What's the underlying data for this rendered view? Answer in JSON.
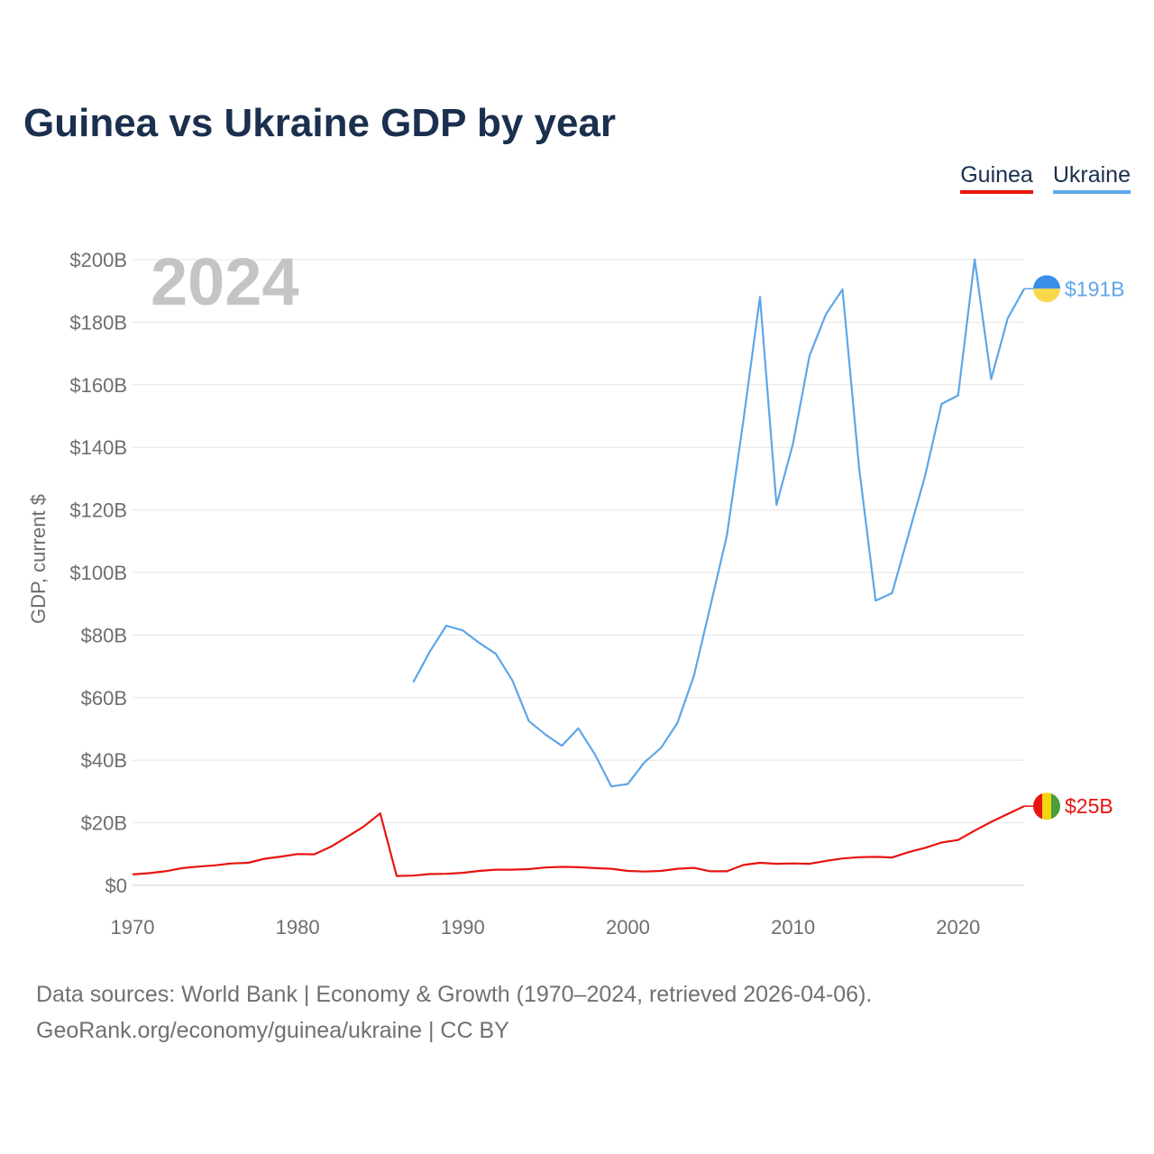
{
  "chart_data": {
    "type": "line",
    "title": "Guinea vs Ukraine GDP by year",
    "year_label": "2024",
    "ylabel": "GDP, current $",
    "xlabel": "",
    "xlim": [
      1970,
      2024
    ],
    "ylim": [
      0,
      200
    ],
    "x_ticks": [
      1970,
      1980,
      1990,
      2000,
      2010,
      2020
    ],
    "y_ticks": [
      {
        "value": 0,
        "label": "$0"
      },
      {
        "value": 20,
        "label": "$20B"
      },
      {
        "value": 40,
        "label": "$40B"
      },
      {
        "value": 60,
        "label": "$60B"
      },
      {
        "value": 80,
        "label": "$80B"
      },
      {
        "value": 100,
        "label": "$100B"
      },
      {
        "value": 120,
        "label": "$120B"
      },
      {
        "value": 140,
        "label": "$140B"
      },
      {
        "value": 160,
        "label": "$160B"
      },
      {
        "value": 180,
        "label": "$180B"
      },
      {
        "value": 200,
        "label": "$200B"
      }
    ],
    "unit": "billion USD",
    "series": [
      {
        "name": "Guinea",
        "color": "#e8140f",
        "end_label": "$25B",
        "flag_colors": [
          "#e8140f",
          "#f5d410",
          "#4a9e3c"
        ],
        "x": [
          1970,
          1971,
          1972,
          1973,
          1974,
          1975,
          1976,
          1977,
          1978,
          1979,
          1980,
          1981,
          1982,
          1983,
          1984,
          1985,
          1986,
          1987,
          1988,
          1989,
          1990,
          1991,
          1992,
          1993,
          1994,
          1995,
          1996,
          1997,
          1998,
          1999,
          2000,
          2001,
          2002,
          2003,
          2004,
          2005,
          2006,
          2007,
          2008,
          2009,
          2010,
          2011,
          2012,
          2013,
          2014,
          2015,
          2016,
          2017,
          2018,
          2019,
          2020,
          2021,
          2022,
          2023,
          2024
        ],
        "values": [
          3.5,
          3.9,
          4.5,
          5.5,
          6.0,
          6.4,
          7.0,
          7.2,
          8.5,
          9.2,
          10.0,
          9.9,
          12.3,
          15.5,
          18.8,
          23.0,
          3.0,
          3.1,
          3.6,
          3.7,
          4.0,
          4.6,
          5.0,
          5.0,
          5.2,
          5.7,
          5.9,
          5.8,
          5.5,
          5.3,
          4.6,
          4.4,
          4.6,
          5.3,
          5.6,
          4.5,
          4.5,
          6.5,
          7.2,
          6.9,
          7.0,
          6.9,
          7.8,
          8.6,
          9.0,
          9.1,
          8.9,
          10.6,
          12.0,
          13.7,
          14.5,
          17.5,
          20.3,
          22.8,
          25.3
        ]
      },
      {
        "name": "Ukraine",
        "color": "#5ea6e8",
        "end_label": "$191B",
        "flag_colors": [
          "#3b8fe8",
          "#f8d94a"
        ],
        "x": [
          1987,
          1988,
          1989,
          1990,
          1991,
          1992,
          1993,
          1994,
          1995,
          1996,
          1997,
          1998,
          1999,
          2000,
          2001,
          2002,
          2003,
          2004,
          2005,
          2006,
          2007,
          2008,
          2009,
          2010,
          2011,
          2012,
          2013,
          2014,
          2015,
          2016,
          2017,
          2018,
          2019,
          2020,
          2021,
          2022,
          2023,
          2024
        ],
        "values": [
          64.9,
          74.7,
          83.0,
          81.5,
          77.5,
          74.0,
          65.6,
          52.5,
          48.2,
          44.6,
          50.2,
          41.9,
          31.6,
          32.4,
          39.3,
          43.9,
          51.9,
          67.0,
          89.3,
          111.9,
          148.7,
          188.1,
          121.6,
          141.2,
          169.3,
          182.6,
          190.5,
          133.5,
          91.0,
          93.4,
          112.2,
          130.9,
          153.9,
          156.6,
          200.1,
          161.8,
          181.2,
          190.7
        ]
      }
    ]
  },
  "legend": {
    "items": [
      {
        "label": "Guinea"
      },
      {
        "label": "Ukraine"
      }
    ]
  },
  "footer": {
    "sources": "Data sources: World Bank | Economy & Growth (1970–2024, retrieved 2026-04-06).",
    "credit": "GeoRank.org/economy/guinea/ukraine | CC BY"
  }
}
